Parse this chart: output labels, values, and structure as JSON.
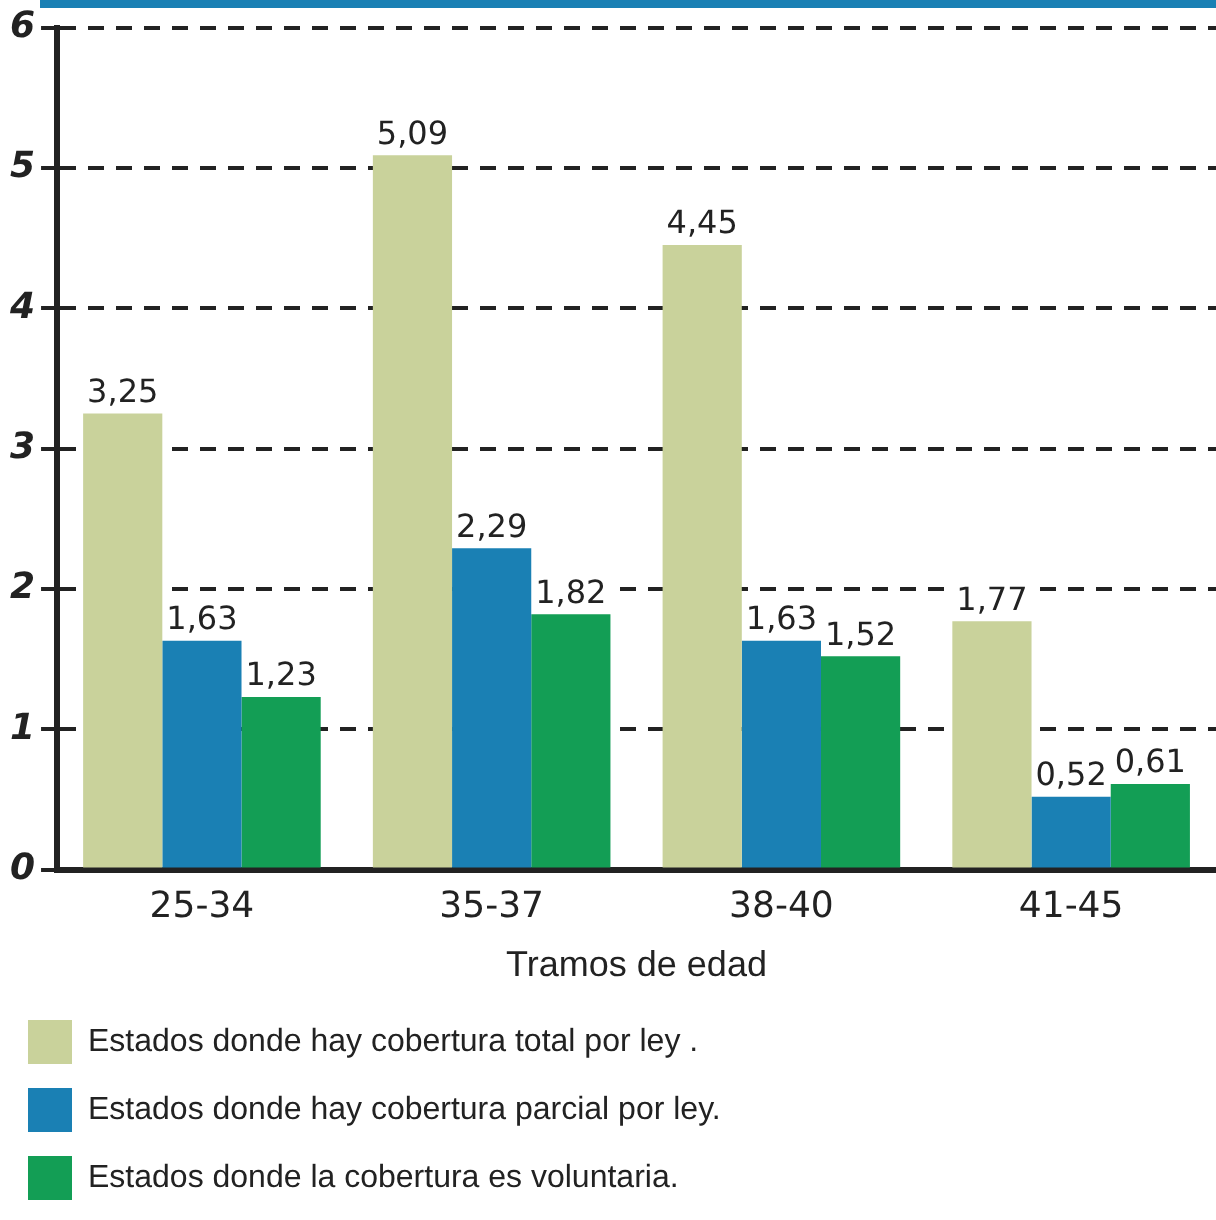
{
  "chart_data": {
    "type": "bar",
    "xlabel": "Tramos de edad",
    "categories": [
      "25-34",
      "35-37",
      "38-40",
      "41-45"
    ],
    "series": [
      {
        "name": "Estados donde hay cobertura total por ley .",
        "color": "#c9d29b",
        "values": [
          3.25,
          5.09,
          4.45,
          1.77
        ],
        "value_labels": [
          "3,25",
          "5,09",
          "4,45",
          "1,77"
        ]
      },
      {
        "name": "Estados donde hay cobertura parcial por ley.",
        "color": "#1a80b4",
        "values": [
          1.63,
          2.29,
          1.63,
          0.52
        ],
        "value_labels": [
          "1,63",
          "2,29",
          "1,63",
          "0,52"
        ]
      },
      {
        "name": "Estados donde la cobertura es voluntaria.",
        "color": "#139e55",
        "values": [
          1.23,
          1.82,
          1.52,
          0.61
        ],
        "value_labels": [
          "1,23",
          "1,82",
          "1,52",
          "0,61"
        ]
      }
    ],
    "ylim": [
      0,
      6
    ],
    "yticks": [
      0,
      1,
      2,
      3,
      4,
      5,
      6
    ],
    "grid": "y",
    "legend": "bottom"
  }
}
